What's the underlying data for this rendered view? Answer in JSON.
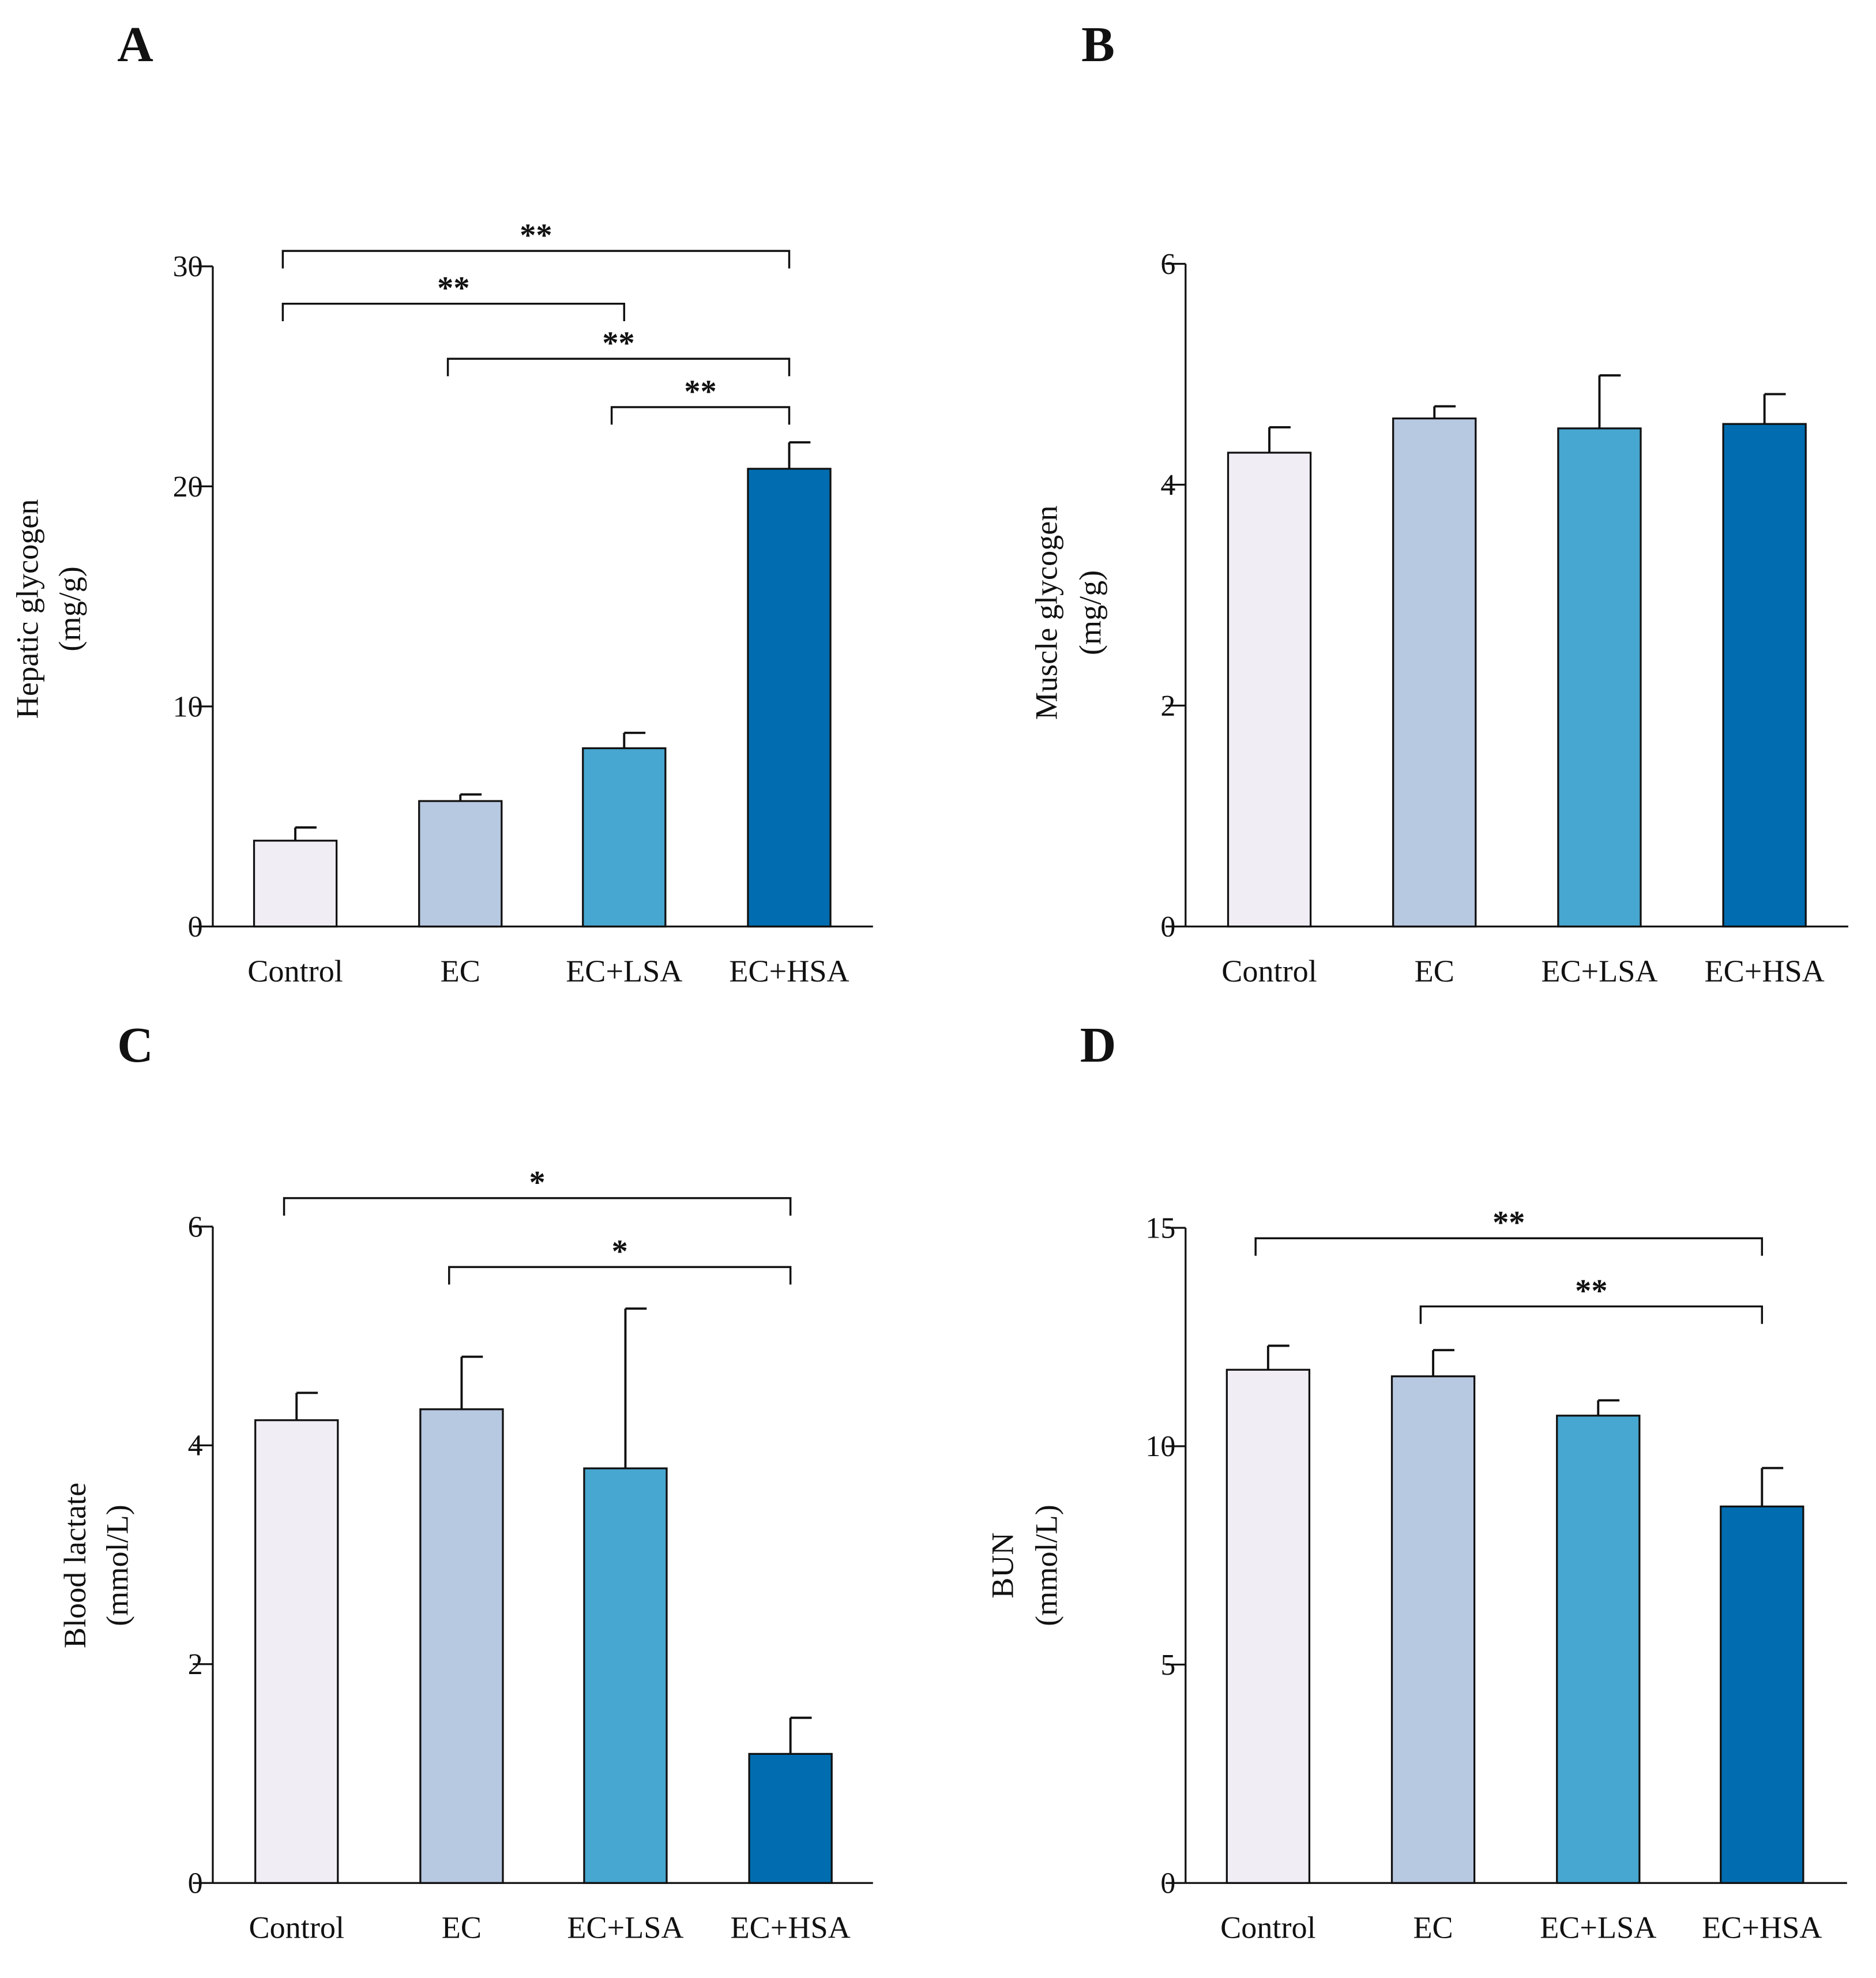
{
  "colors": {
    "Control": "#f1edf5",
    "EC": "#b7c8e1",
    "EC+LSA": "#47a7d0",
    "EC+HSA": "#016db0"
  },
  "chart_data": [
    {
      "panel": "A",
      "type": "bar",
      "categories": [
        "Control",
        "EC",
        "EC+LSA",
        "EC+HSA"
      ],
      "values": [
        3.9,
        5.7,
        8.1,
        20.8
      ],
      "errors": [
        0.6,
        0.3,
        0.7,
        1.2
      ],
      "ylabel": [
        "Hepatic glycogen",
        "(mg/g)"
      ],
      "ylim": [
        0,
        30
      ],
      "yticks": [
        0,
        10,
        20,
        30
      ],
      "significance": [
        {
          "pair": [
            0,
            3
          ],
          "label": "**",
          "level": 30.7
        },
        {
          "pair": [
            0,
            2
          ],
          "label": "**",
          "level": 28.3
        },
        {
          "pair": [
            1,
            3
          ],
          "label": "**",
          "level": 25.8
        },
        {
          "pair": [
            2,
            3
          ],
          "label": "**",
          "level": 23.6
        }
      ]
    },
    {
      "panel": "B",
      "type": "bar",
      "categories": [
        "Control",
        "EC",
        "EC+LSA",
        "EC+HSA"
      ],
      "values": [
        4.29,
        4.6,
        4.51,
        4.55
      ],
      "errors": [
        0.23,
        0.11,
        0.48,
        0.27
      ],
      "ylabel": [
        "Muscle glycogen",
        "(mg/g)"
      ],
      "ylim": [
        0,
        6
      ],
      "yticks": [
        0,
        2,
        4,
        6
      ],
      "significance": []
    },
    {
      "panel": "C",
      "type": "bar",
      "categories": [
        "Control",
        "EC",
        "EC+LSA",
        "EC+HSA"
      ],
      "values": [
        4.23,
        4.33,
        3.79,
        1.18
      ],
      "errors": [
        0.25,
        0.48,
        1.46,
        0.33
      ],
      "ylabel": [
        "Blood lactate",
        "(mmol/L)"
      ],
      "ylim": [
        0,
        6
      ],
      "yticks": [
        0,
        2,
        4,
        6
      ],
      "significance": [
        {
          "pair": [
            0,
            3
          ],
          "label": "*",
          "level": 6.26
        },
        {
          "pair": [
            1,
            3
          ],
          "label": "*",
          "level": 5.63
        }
      ]
    },
    {
      "panel": "D",
      "type": "bar",
      "categories": [
        "Control",
        "EC",
        "EC+LSA",
        "EC+HSA"
      ],
      "values": [
        11.75,
        11.6,
        10.7,
        8.62
      ],
      "errors": [
        0.55,
        0.6,
        0.35,
        0.88
      ],
      "ylabel": [
        "BUN",
        "(mmol/L)"
      ],
      "ylim": [
        0,
        15
      ],
      "yticks": [
        0,
        5,
        10,
        15
      ],
      "significance": [
        {
          "pair": [
            0,
            3
          ],
          "label": "**",
          "level": 14.76
        },
        {
          "pair": [
            1,
            3
          ],
          "label": "**",
          "level": 13.2
        }
      ]
    }
  ]
}
